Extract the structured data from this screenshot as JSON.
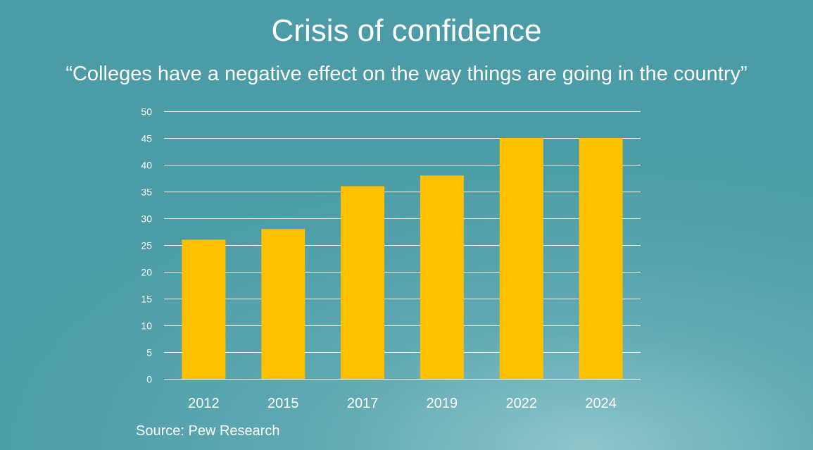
{
  "header": {
    "title": "Crisis of confidence",
    "subtitle": "“Colleges have a negative effect on the way things are going in the country”"
  },
  "footer": {
    "source": "Source: Pew Research"
  },
  "colors": {
    "bar": "#ffc000",
    "grid": "#ffffff",
    "text": "#ffffff"
  },
  "chart_data": {
    "type": "bar",
    "title": "Crisis of confidence",
    "subtitle": "“Colleges have a negative effect on the way things are going in the country”",
    "categories": [
      "2012",
      "2015",
      "2017",
      "2019",
      "2022",
      "2024"
    ],
    "values": [
      26,
      28,
      36,
      38,
      45,
      45
    ],
    "xlabel": "",
    "ylabel": "",
    "ylim": [
      0,
      50
    ],
    "yticks": [
      "0",
      "5",
      "10",
      "15",
      "20",
      "25",
      "30",
      "35",
      "40",
      "45",
      "50"
    ],
    "grid": true,
    "legend": "none"
  }
}
